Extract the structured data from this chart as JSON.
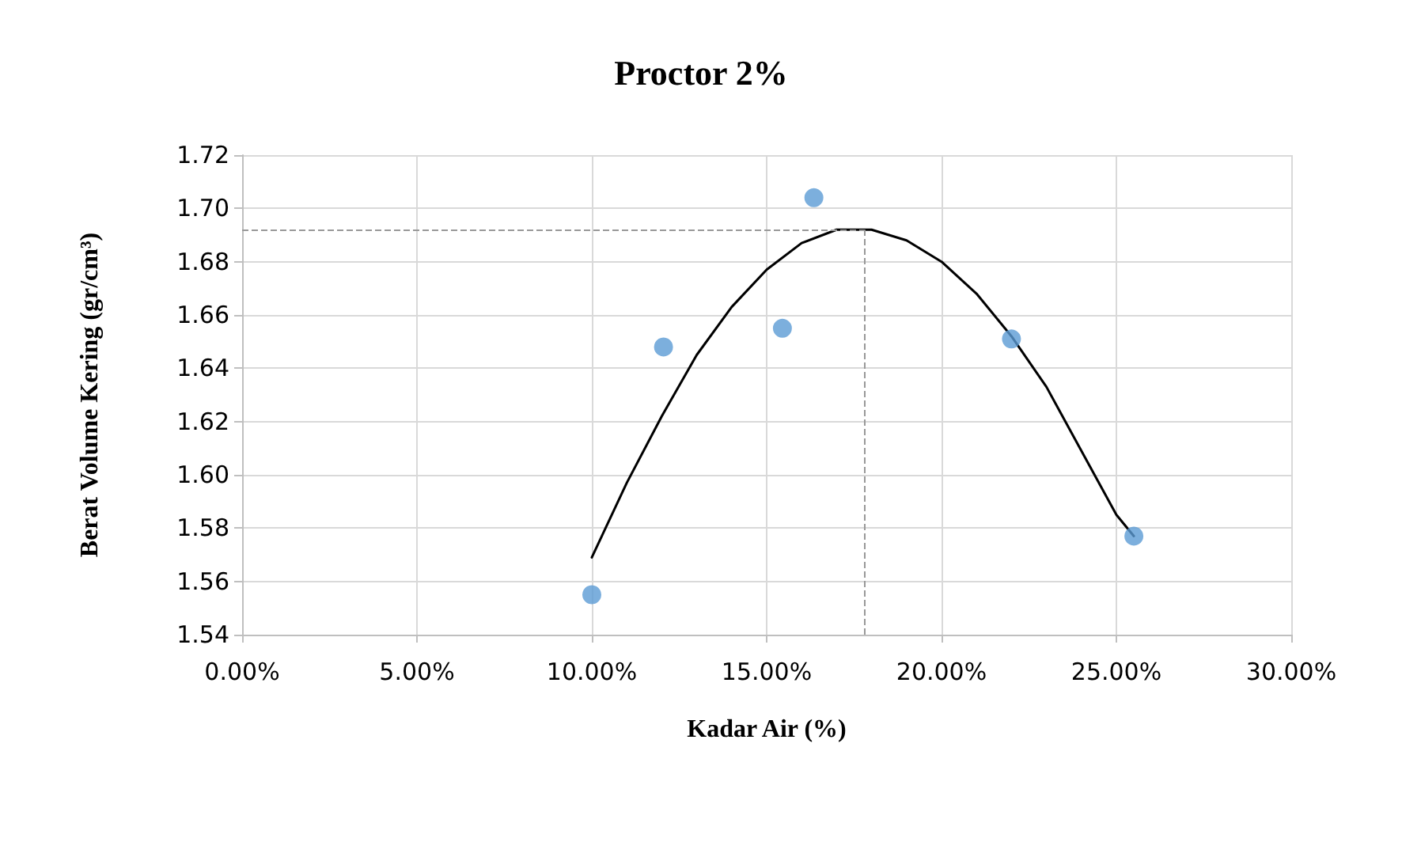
{
  "chart_data": {
    "type": "scatter",
    "title": "Proctor 2%",
    "xlabel": "Kadar Air (%)",
    "ylabel": "Berat Volume Kering (gr/cm³)",
    "series": [
      {
        "color": "#5b9bd5",
        "marker": "circle",
        "x": [
          10.0,
          12.05,
          15.45,
          16.35,
          22.0,
          25.5
        ],
        "values": [
          1.555,
          1.648,
          1.655,
          1.704,
          1.651,
          1.577
        ]
      },
      {
        "type": "line",
        "color": "#000000",
        "marker": "none",
        "x": [
          10,
          11,
          12,
          13,
          14,
          15,
          16,
          17,
          18,
          19,
          20,
          21,
          22,
          23,
          24,
          25,
          25.5
        ],
        "values": [
          1.569,
          1.597,
          1.622,
          1.645,
          1.663,
          1.677,
          1.687,
          1.692,
          1.692,
          1.688,
          1.68,
          1.668,
          1.652,
          1.633,
          1.609,
          1.585,
          1.577
        ]
      }
    ],
    "xlim": [
      0,
      30
    ],
    "xticks": [
      {
        "value": 0,
        "label": "0.00%"
      },
      {
        "value": 5,
        "label": "5.00%"
      },
      {
        "value": 10,
        "label": "10.00%"
      },
      {
        "value": 15,
        "label": "15.00%"
      },
      {
        "value": 20,
        "label": "20.00%"
      },
      {
        "value": 25,
        "label": "25.00%"
      },
      {
        "value": 30,
        "label": "30.00%"
      }
    ],
    "ylim": [
      1.54,
      1.72
    ],
    "yticks": [
      {
        "value": 1.54,
        "label": "1.54"
      },
      {
        "value": 1.56,
        "label": "1.56"
      },
      {
        "value": 1.58,
        "label": "1.58"
      },
      {
        "value": 1.6,
        "label": "1.60"
      },
      {
        "value": 1.62,
        "label": "1.62"
      },
      {
        "value": 1.64,
        "label": "1.64"
      },
      {
        "value": 1.66,
        "label": "1.66"
      },
      {
        "value": 1.68,
        "label": "1.68"
      },
      {
        "value": 1.7,
        "label": "1.70"
      },
      {
        "value": 1.72,
        "label": "1.72"
      }
    ],
    "ref_lines": [
      {
        "axis": "y",
        "value": 1.692,
        "color": "#999999",
        "line_style": "dashed"
      },
      {
        "axis": "x",
        "value": 17.8,
        "color": "#999999",
        "line_style": "dashed"
      }
    ],
    "grid": true
  }
}
